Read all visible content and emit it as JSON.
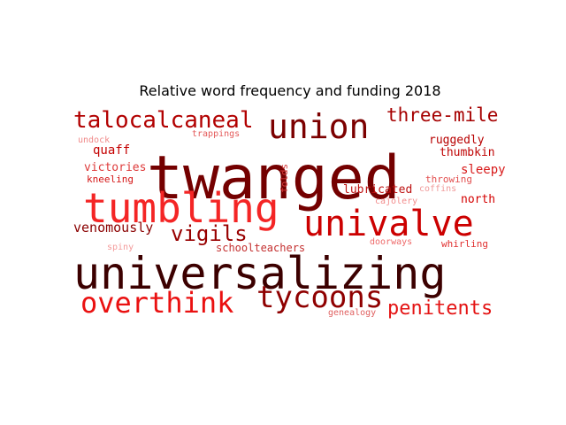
{
  "chart_data": {
    "type": "wordcloud",
    "title": "Relative word frequency and funding 2018",
    "words": [
      {
        "text": "twanged",
        "weight": 1.0,
        "color": "#740000"
      },
      {
        "text": "universalizing",
        "weight": 0.88,
        "color": "#3c0000"
      },
      {
        "text": "tumbling",
        "weight": 0.74,
        "color": "#f42525"
      },
      {
        "text": "univalve",
        "weight": 0.68,
        "color": "#cc0000"
      },
      {
        "text": "union",
        "weight": 0.62,
        "color": "#7c0000"
      },
      {
        "text": "tycoons",
        "weight": 0.58,
        "color": "#8f0000"
      },
      {
        "text": "overthink",
        "weight": 0.55,
        "color": "#ea1111"
      },
      {
        "text": "talocalcaneal",
        "weight": 0.45,
        "color": "#b20000"
      },
      {
        "text": "penitents",
        "weight": 0.38,
        "color": "#e41414"
      },
      {
        "text": "vigils",
        "weight": 0.36,
        "color": "#980000"
      },
      {
        "text": "three-mile",
        "weight": 0.34,
        "color": "#a60000"
      },
      {
        "text": "venomously",
        "weight": 0.27,
        "color": "#8a0000"
      },
      {
        "text": "ruggedly",
        "weight": 0.24,
        "color": "#b80000"
      },
      {
        "text": "north",
        "weight": 0.22,
        "color": "#d40000"
      },
      {
        "text": "sleepy",
        "weight": 0.22,
        "color": "#d81a1a"
      },
      {
        "text": "lubricated",
        "weight": 0.22,
        "color": "#bd1010"
      },
      {
        "text": "victories",
        "weight": 0.2,
        "color": "#de3a3a"
      },
      {
        "text": "quaff",
        "weight": 0.2,
        "color": "#c40000"
      },
      {
        "text": "thumbkin",
        "weight": 0.19,
        "color": "#c00606"
      },
      {
        "text": "schoolteachers",
        "weight": 0.19,
        "color": "#c43030"
      },
      {
        "text": "whirling",
        "weight": 0.17,
        "color": "#e03030"
      },
      {
        "text": "kneeling",
        "weight": 0.17,
        "color": "#d41414"
      },
      {
        "text": "folds",
        "weight": 0.15,
        "color": "#d43a3a"
      },
      {
        "text": "throwing",
        "weight": 0.15,
        "color": "#e25050"
      },
      {
        "text": "trappings",
        "weight": 0.14,
        "color": "#e45a5a"
      },
      {
        "text": "doorways",
        "weight": 0.14,
        "color": "#ee6a6a"
      },
      {
        "text": "undock",
        "weight": 0.13,
        "color": "#f08a8a"
      },
      {
        "text": "coffins",
        "weight": 0.13,
        "color": "#f09a9a"
      },
      {
        "text": "cajolery",
        "weight": 0.12,
        "color": "#f28c8c"
      },
      {
        "text": "genealogy",
        "weight": 0.12,
        "color": "#e06060"
      },
      {
        "text": "spiny",
        "weight": 0.11,
        "color": "#f49a9a"
      }
    ]
  }
}
